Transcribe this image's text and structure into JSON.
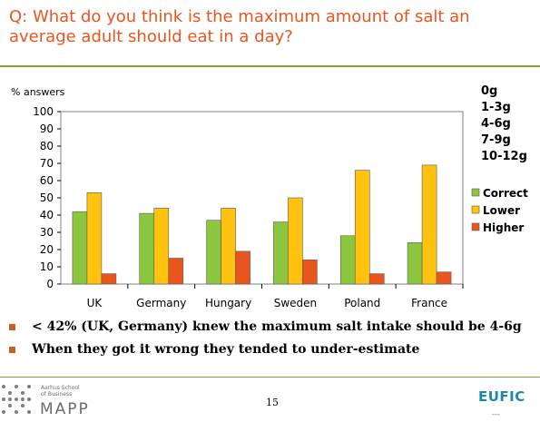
{
  "slide": {
    "title": "Q: What do you think is the maximum amount of salt an average adult should eat in a day?",
    "ranges": [
      "0g",
      "1-3g",
      "4-6g",
      "7-9g",
      "10-12g"
    ],
    "bullets": [
      "< 42% (UK, Germany) knew the maximum salt intake should be 4-6g",
      "When they got it wrong they tended to under-estimate"
    ],
    "page_number": "15",
    "school_lines": [
      "Aarhus School",
      "of Business"
    ],
    "logo_text": "MAPP",
    "brand": "EUFIC",
    "brand_sub": "---"
  },
  "colors": {
    "accent_title": "#e8561e",
    "rule": "#8aa02b",
    "correct": "#8cc63f",
    "lower": "#ffc20e",
    "higher": "#e8561e",
    "brand": "#1a8aa6"
  },
  "chart_data": {
    "type": "bar",
    "ylabel": "% answers",
    "xlabel": "",
    "ylim": [
      0,
      100
    ],
    "yticks": [
      0,
      10,
      20,
      30,
      40,
      50,
      60,
      70,
      80,
      90,
      100
    ],
    "grid": false,
    "legend_position": "right",
    "categories": [
      "UK",
      "Germany",
      "Hungary",
      "Sweden",
      "Poland",
      "France"
    ],
    "series": [
      {
        "name": "Correct",
        "color": "#8cc63f",
        "values": [
          42,
          41,
          37,
          36,
          28,
          24
        ]
      },
      {
        "name": "Lower",
        "color": "#ffc20e",
        "values": [
          53,
          44,
          44,
          50,
          66,
          69
        ]
      },
      {
        "name": "Higher",
        "color": "#e8561e",
        "values": [
          6,
          15,
          19,
          14,
          6,
          7
        ]
      }
    ]
  }
}
